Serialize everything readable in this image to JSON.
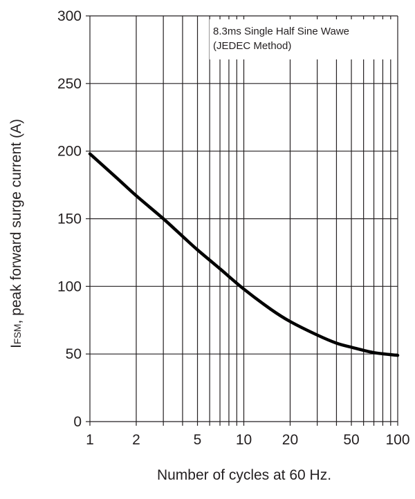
{
  "chart_data": {
    "type": "line",
    "x_scale": "log",
    "grid": true,
    "xlim": [
      1,
      100
    ],
    "ylim": [
      0,
      300
    ],
    "x_major_ticks": [
      1,
      2,
      5,
      10,
      20,
      50,
      100
    ],
    "x_tick_labels": [
      "1",
      "2",
      "5",
      "10",
      "20",
      "50",
      "100"
    ],
    "x_grid": [
      1,
      2,
      3,
      4,
      5,
      6,
      7,
      8,
      9,
      10,
      20,
      30,
      40,
      50,
      60,
      70,
      80,
      90,
      100
    ],
    "y_ticks": [
      0,
      50,
      100,
      150,
      200,
      250,
      300
    ],
    "y_tick_labels": [
      "0",
      "50",
      "100",
      "150",
      "200",
      "250",
      "300"
    ],
    "ylabel_symbol": "I",
    "ylabel_subscript": "FSM",
    "ylabel_rest": ", peak forward surge current (A)",
    "xlabel": "Number of cycles at 60 Hz.",
    "annotation_line1": "8.3ms Single Half Sine Wawe",
    "annotation_line2": "(JEDEC Method)",
    "line_color": "#000000",
    "series": [
      {
        "x": [
          1,
          1.5,
          2,
          3,
          4,
          5,
          7,
          10,
          15,
          20,
          30,
          40,
          50,
          70,
          100
        ],
        "y": [
          198,
          180,
          167,
          150,
          137,
          127,
          113,
          98,
          83,
          74,
          64,
          58,
          55,
          51,
          49
        ]
      }
    ]
  }
}
